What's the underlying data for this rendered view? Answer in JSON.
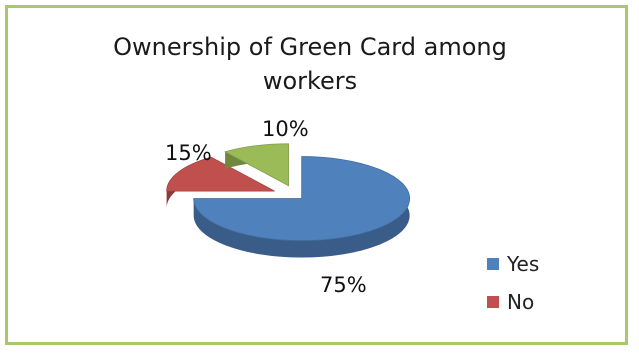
{
  "chart_data": {
    "type": "pie",
    "title": "Ownership of Green Card among workers",
    "categories": [
      "Yes",
      "No",
      ""
    ],
    "values": [
      75,
      15,
      10
    ],
    "data_labels": [
      "75%",
      "15%",
      "10%"
    ],
    "colors": [
      "#4f81bd",
      "#c0504d",
      "#9bbb59"
    ],
    "legend": {
      "position": "bottom-right",
      "entries": [
        "Yes",
        "No"
      ]
    },
    "style": "3d-exploded"
  }
}
